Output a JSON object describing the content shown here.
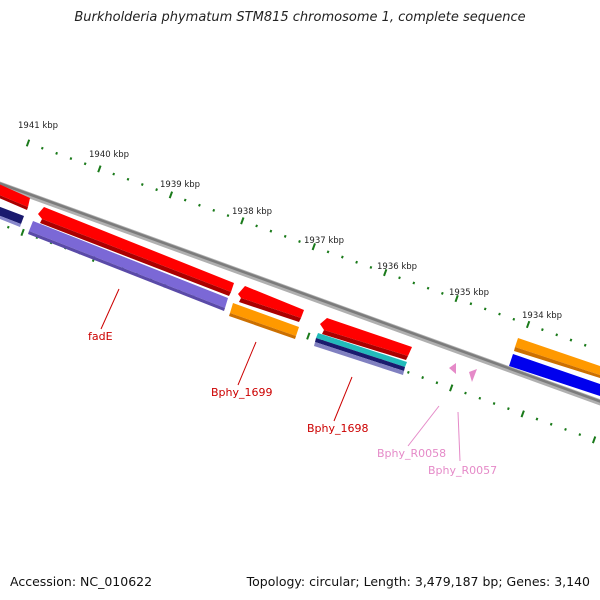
{
  "title": "Burkholderia phymatum STM815 chromosome 1, complete sequence",
  "accession": "Accession: NC_010622",
  "summary": "Topology: circular; Length: 3,479,187 bp; Genes: 3,140",
  "ticks": [
    {
      "label": "1941 kbp",
      "kbp": 1941
    },
    {
      "label": "1940 kbp",
      "kbp": 1940
    },
    {
      "label": "1939 kbp",
      "kbp": 1939
    },
    {
      "label": "1938 kbp",
      "kbp": 1938
    },
    {
      "label": "1937 kbp",
      "kbp": 1937
    },
    {
      "label": "1936 kbp",
      "kbp": 1936
    },
    {
      "label": "1935 kbp",
      "kbp": 1935
    },
    {
      "label": "1934 kbp",
      "kbp": 1934
    }
  ],
  "gene_labels": [
    {
      "text": "fadE",
      "color": "#cc0000"
    },
    {
      "text": "Bphy_1699",
      "color": "#cc0000"
    },
    {
      "text": "Bphy_1698",
      "color": "#cc0000"
    },
    {
      "text": "Bphy_R0058",
      "color": "#e58ac8"
    },
    {
      "text": "Bphy_R0057",
      "color": "#e58ac8"
    }
  ],
  "colors": {
    "gene_red": "#ff0000",
    "cds_orange": "#ff9900",
    "blue": "#0000ee",
    "purple": "#7b68d6",
    "navy": "#1a1a6e",
    "teal": "#22bbbb",
    "pink_rna": "#e58ac8",
    "backbone": "#888888",
    "tick_green": "#1a7a1a"
  }
}
